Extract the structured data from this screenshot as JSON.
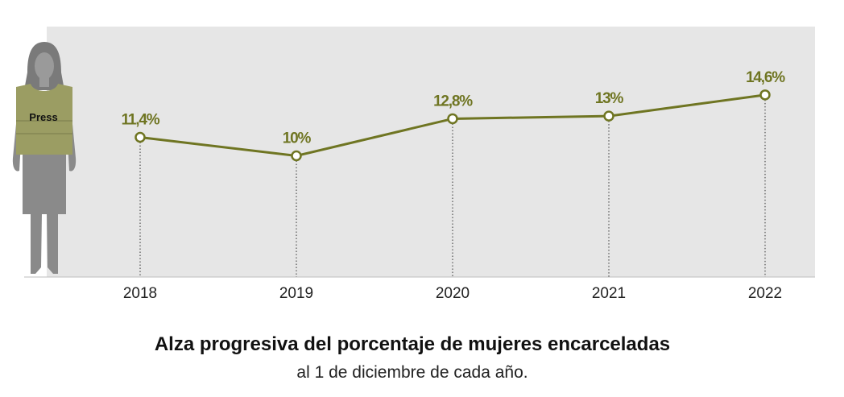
{
  "chart_data": {
    "type": "line",
    "title": "Alza progresiva del porcentaje de mujeres encarceladas",
    "subtitle": "al 1 de diciembre de cada año.",
    "categories": [
      "2018",
      "2019",
      "2020",
      "2021",
      "2022"
    ],
    "values": [
      11.4,
      10,
      12.8,
      13,
      14.6
    ],
    "data_labels": [
      "11,4%",
      "10%",
      "12,8%",
      "13%",
      "14,6%"
    ],
    "ylim": [
      0,
      20
    ],
    "grid": false,
    "legend": "none",
    "colors": {
      "line": "#6f7522",
      "background": "#e6e6e6",
      "label": "#6f7522",
      "figure": "#8a8a8a",
      "vest": "#9b9d63"
    }
  },
  "illustration": {
    "vest_text": "Press",
    "icon": "woman-press-vest-icon"
  }
}
